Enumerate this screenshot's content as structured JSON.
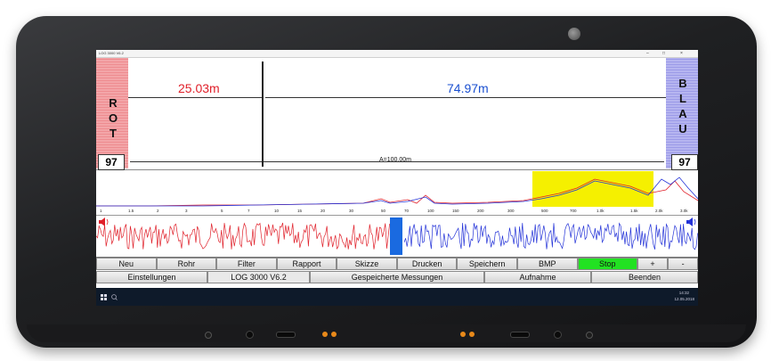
{
  "window": {
    "title": "LOG 3000 V6.2",
    "controls": [
      "–",
      "□",
      "×"
    ]
  },
  "top_plot": {
    "left_label": [
      "R",
      "O",
      "T"
    ],
    "right_label": [
      "B",
      "L",
      "A",
      "U"
    ],
    "left_value": "97",
    "right_value": "97",
    "left_distance": "25.03m",
    "right_distance": "74.97m",
    "total_distance": "A=100.00m",
    "left_color": "#e0202a",
    "right_color": "#1a4fd0"
  },
  "spectrum": {
    "highlight_color": "#f5f000",
    "tick_labels": [
      "1",
      "1.5",
      "2",
      "3",
      "5",
      "7",
      "10",
      "15",
      "20",
      "30",
      "50",
      "70",
      "100",
      "150",
      "200",
      "300",
      "500",
      "700",
      "1.0k",
      "1.5k",
      "2.0k",
      "3.0k"
    ]
  },
  "waves": {
    "left_speaker_icon": "speaker-icon",
    "right_speaker_icon": "speaker-icon",
    "left_color": "#e0202a",
    "right_color": "#2433d8",
    "cursor_color": "#1a6ae0"
  },
  "toolbar1": [
    "Neu",
    "Rohr",
    "Filter",
    "Rapport",
    "Skizze",
    "Drucken",
    "Speichern",
    "BMP",
    "Stop",
    "+",
    "-"
  ],
  "toolbar2": [
    "Einstellungen",
    "LOG 3000 V6.2",
    "Gespeicherte Messungen",
    "Aufnahme",
    "Beenden"
  ],
  "taskbar": {
    "start_icon": "windows-icon",
    "search_icon": "search-icon",
    "time": "14:32",
    "date": "12.05.2018"
  }
}
